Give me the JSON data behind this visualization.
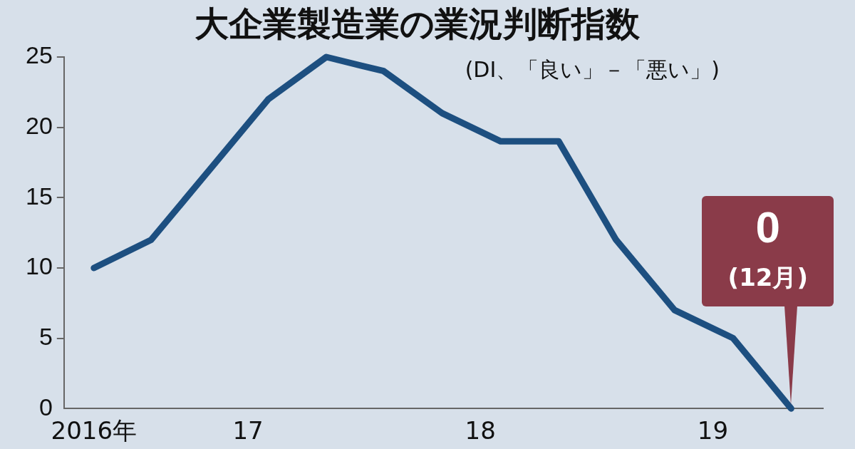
{
  "chart_data": {
    "type": "line",
    "title": "大企業製造業の業況判断指数",
    "subtitle": "(DI、「良い」－「悪い」)",
    "x": [
      "2016-12",
      "2017-03",
      "2017-06",
      "2017-09",
      "2017-12",
      "2018-03",
      "2018-06",
      "2018-09",
      "2018-12",
      "2019-03",
      "2019-06",
      "2019-09",
      "2019-12"
    ],
    "series": [
      {
        "color": "#1d4f80",
        "values": [
          10,
          12,
          17,
          22,
          25,
          24,
          21,
          19,
          19,
          12,
          7,
          5,
          0
        ]
      }
    ],
    "xlim": [
      "2016-10-15",
      "2020-01-20"
    ],
    "xticks": [
      {
        "value": "2016-12",
        "label": "2016年"
      },
      {
        "value": "2017-07-31",
        "label": "17"
      },
      {
        "value": "2018-07-31",
        "label": "18"
      },
      {
        "value": "2019-07-31",
        "label": "19"
      }
    ],
    "ylim": [
      0,
      25
    ],
    "yticks": [
      0,
      5,
      10,
      15,
      20,
      25
    ],
    "grid": false,
    "legend": false,
    "marker": "none",
    "line_style": "solid",
    "annotations": [
      "0",
      "(12月)"
    ]
  }
}
